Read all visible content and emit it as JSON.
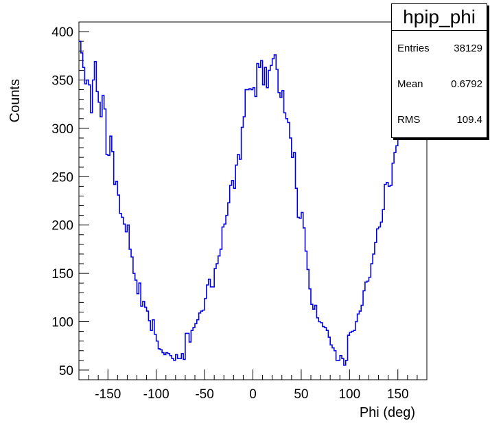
{
  "chart_data": {
    "type": "histogram",
    "title": "",
    "xlabel": "Phi (deg)",
    "ylabel": "Counts",
    "xlim": [
      -180,
      180
    ],
    "ylim": [
      40,
      410
    ],
    "x_ticks": [
      -150,
      -100,
      -50,
      0,
      50,
      100,
      150
    ],
    "y_ticks": [
      50,
      100,
      150,
      200,
      250,
      300,
      350,
      400
    ],
    "line_color": "#0000ee",
    "bin_width": 2,
    "bin_start": -180,
    "values": [
      390,
      378,
      363,
      346,
      350,
      345,
      316,
      350,
      369,
      338,
      327,
      312,
      334,
      320,
      273,
      272,
      292,
      276,
      242,
      245,
      231,
      212,
      208,
      201,
      193,
      200,
      175,
      167,
      150,
      143,
      129,
      140,
      116,
      121,
      115,
      111,
      101,
      91,
      102,
      87,
      80,
      72,
      71,
      68,
      66,
      68,
      67,
      65,
      62,
      60,
      66,
      62,
      62,
      67,
      61,
      88,
      88,
      79,
      91,
      94,
      98,
      102,
      109,
      111,
      112,
      124,
      138,
      144,
      136,
      136,
      155,
      160,
      168,
      175,
      198,
      201,
      210,
      223,
      241,
      246,
      238,
      262,
      273,
      268,
      301,
      312,
      340,
      340,
      341,
      340,
      342,
      333,
      367,
      363,
      370,
      345,
      363,
      342,
      360,
      365,
      372,
      376,
      361,
      337,
      332,
      339,
      316,
      310,
      306,
      290,
      270,
      275,
      238,
      208,
      207,
      213,
      197,
      173,
      154,
      134,
      118,
      113,
      117,
      104,
      100,
      99,
      95,
      94,
      91,
      84,
      76,
      73,
      70,
      60,
      60,
      65,
      62,
      55,
      60,
      86,
      89,
      90,
      91,
      100,
      108,
      111,
      117,
      132,
      141,
      142,
      146,
      160,
      170,
      182,
      196,
      198,
      203,
      216,
      242,
      244,
      240,
      241,
      264,
      275,
      282,
      291,
      303,
      308,
      318,
      321,
      322,
      351
    ]
  },
  "stats": {
    "title": "hpip_phi",
    "entries_label": "Entries",
    "entries_value": "38129",
    "mean_label": "Mean",
    "mean_value": "0.6792",
    "rms_label": "RMS",
    "rms_value": "109.4"
  }
}
